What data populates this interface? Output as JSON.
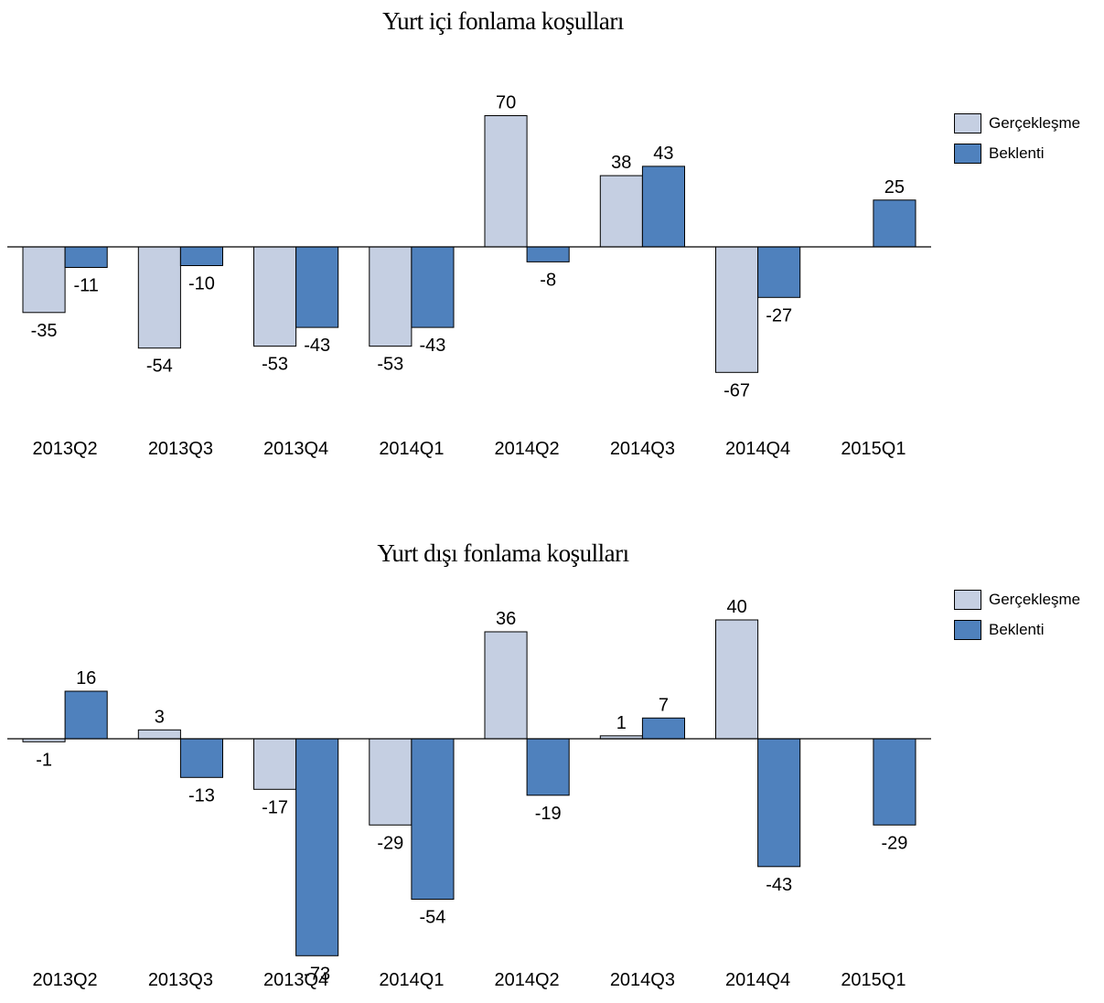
{
  "colors": {
    "realized": "#c5cfe2",
    "expected": "#4f81bd",
    "stroke": "#000000"
  },
  "chart_data": [
    {
      "type": "bar",
      "title": "Yurt içi fonlama koşulları",
      "categories": [
        "2013Q2",
        "2013Q3",
        "2013Q4",
        "2014Q1",
        "2014Q2",
        "2014Q3",
        "2014Q4",
        "2015Q1"
      ],
      "series": [
        {
          "name": "Gerçekleşme",
          "values": [
            -35,
            -54,
            -53,
            -53,
            70,
            38,
            -67,
            null
          ]
        },
        {
          "name": "Beklenti",
          "values": [
            -11,
            -10,
            -43,
            -43,
            -8,
            43,
            -27,
            25
          ]
        }
      ],
      "ylim": [
        -80,
        80
      ],
      "grid": false,
      "legend": "top-right"
    },
    {
      "type": "bar",
      "title": "Yurt dışı fonlama koşulları",
      "categories": [
        "2013Q2",
        "2013Q3",
        "2013Q4",
        "2014Q1",
        "2014Q2",
        "2014Q3",
        "2014Q4",
        "2015Q1"
      ],
      "series": [
        {
          "name": "Gerçekleşme",
          "values": [
            -1,
            3,
            -17,
            -29,
            36,
            1,
            40,
            null
          ]
        },
        {
          "name": "Beklenti",
          "values": [
            16,
            -13,
            -73,
            -54,
            -19,
            7,
            -43,
            -29
          ]
        }
      ],
      "ylim": [
        -80,
        50
      ],
      "grid": false,
      "legend": "top-right"
    }
  ]
}
